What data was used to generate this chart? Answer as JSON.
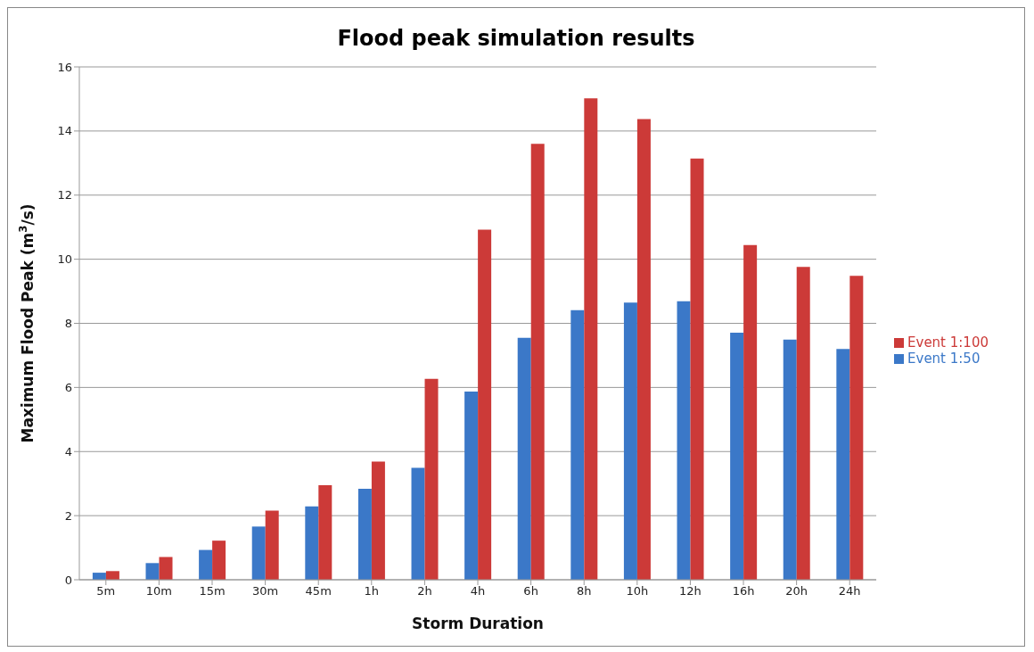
{
  "chart_data": {
    "type": "bar",
    "title": "Flood peak simulation results",
    "xlabel": "Storm Duration",
    "ylabel": "Maximum Flood Peak (m$^{3}$/s)",
    "categories": [
      "5m",
      "10m",
      "15m",
      "30m",
      "45m",
      "1h",
      "2h",
      "4h",
      "6h",
      "8h",
      "10h",
      "12h",
      "16h",
      "20h",
      "24h"
    ],
    "series": [
      {
        "name": "Event 1:50",
        "color": "#3b78c8",
        "values": [
          0.22,
          0.52,
          0.93,
          1.66,
          2.29,
          2.84,
          3.49,
          5.87,
          7.55,
          8.41,
          8.65,
          8.69,
          7.71,
          7.49,
          7.2
        ]
      },
      {
        "name": "Event 1:100",
        "color": "#cc3a38",
        "values": [
          0.27,
          0.71,
          1.22,
          2.16,
          2.95,
          3.69,
          6.27,
          10.92,
          13.6,
          15.02,
          14.37,
          13.14,
          10.44,
          9.76,
          9.48
        ]
      }
    ],
    "ylim": [
      0,
      16
    ],
    "yticks": [
      0,
      2,
      4,
      6,
      8,
      10,
      12,
      14,
      16
    ],
    "grid": "y",
    "legend": "right"
  }
}
